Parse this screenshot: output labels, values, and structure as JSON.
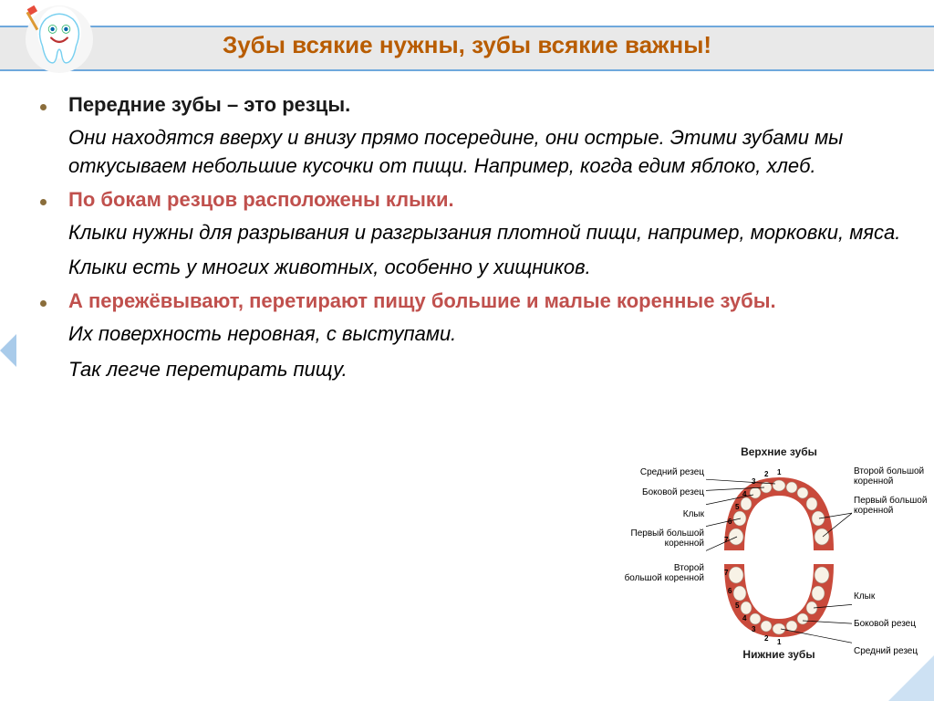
{
  "colors": {
    "title_accent": "#b85c00",
    "band_border": "#6fa8dc",
    "band_bg": "#e9e9e9",
    "bullet_dot": "#8a6d3b",
    "head1": "#1a1a1a",
    "head2": "#c0504d",
    "head3": "#c0504d",
    "gum": "#c94a3b",
    "tooth_fill": "#f8f2e6",
    "tooth_stroke": "#a88"
  },
  "title": "Зубы всякие нужны,   зубы всякие важны!",
  "title_fontsize": 26,
  "bullets": [
    {
      "head": "Передние зубы – это резцы.",
      "head_color": "#1a1a1a",
      "body": [
        "Они находятся вверху и внизу прямо посередине, они острые. Этими зубами мы откусываем небольшие кусочки от пищи. Например, когда едим яблоко, хлеб."
      ]
    },
    {
      "head": "По бокам резцов расположены клыки.",
      "head_color": "#c0504d",
      "body": [
        "Клыки нужны для разрывания и разгрызания плотной пищи, например, морковки, мяса.",
        "Клыки есть у многих животных, особенно у хищников."
      ]
    },
    {
      "head": " А пережёвывают, перетирают пищу большие и малые коренные зубы.",
      "head_color": "#c0504d",
      "body": [
        "Их поверхность неровная, с выступами.",
        "Так легче перетирать пищу."
      ],
      "suffix_plain": "."
    }
  ],
  "diagram": {
    "top_title": "Верхние зубы",
    "bottom_title": "Нижние зубы",
    "labels_left": [
      {
        "text": "Средний резец",
        "n": "1"
      },
      {
        "text": "Боковой резец",
        "n": "2"
      },
      {
        "text": "Клык",
        "n": "3"
      },
      {
        "text": "Первый большой\nкоренной",
        "n": "6"
      },
      {
        "text": "Второй\nбольшой коренной",
        "n": "7"
      }
    ],
    "labels_right": [
      {
        "text": "Второй большой\nкоренной",
        "n": "7"
      },
      {
        "text": "Первый большой\nкоренной",
        "n": "6"
      },
      {
        "text": "Клык",
        "n": "3"
      },
      {
        "text": "Боковой резец",
        "n": "2"
      },
      {
        "text": "Средний резец",
        "n": "1"
      }
    ],
    "numbers_top": [
      "1",
      "2",
      "3",
      "4",
      "5",
      "6",
      "7"
    ],
    "numbers_bottom": [
      "7",
      "6",
      "5",
      "4",
      "3",
      "2",
      "1"
    ],
    "label_fontsize": 10
  }
}
